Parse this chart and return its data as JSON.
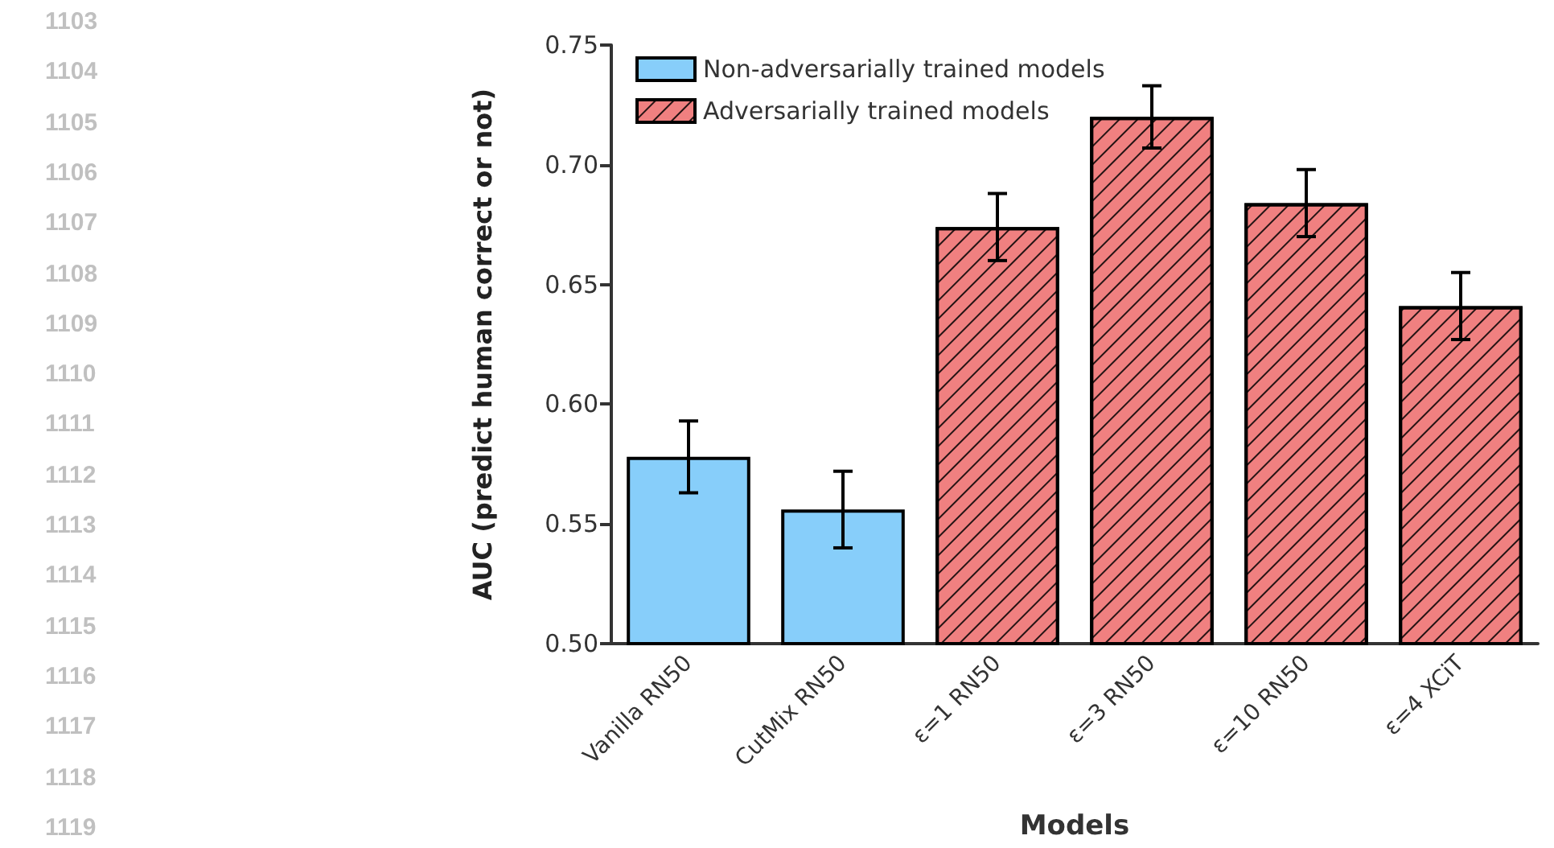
{
  "chart_data": {
    "type": "bar",
    "xlabel": "Models",
    "ylabel": "AUC (predict human correct or not)",
    "categories": [
      "Vanilla RN50",
      "CutMix RN50",
      "ε=1 RN50",
      "ε=3 RN50",
      "ε=10 RN50",
      "ε=4 XCiT"
    ],
    "series": [
      {
        "name": "Non-adversarially trained models",
        "color": "#87cefa",
        "values": [
          0.578,
          0.556,
          null,
          null,
          null,
          null
        ],
        "errors": [
          0.015,
          0.016,
          null,
          null,
          null,
          null
        ]
      },
      {
        "name": "Adversarially trained models",
        "color": "#f08080",
        "values": [
          null,
          null,
          0.674,
          0.72,
          0.684,
          0.641
        ],
        "errors": [
          null,
          null,
          0.014,
          0.013,
          0.014,
          0.014
        ]
      }
    ],
    "ylim": [
      0.5,
      0.75
    ],
    "yticks": [
      {
        "value": 0.5,
        "label": "0.50"
      },
      {
        "value": 0.55,
        "label": "0.55"
      },
      {
        "value": 0.6,
        "label": "0.60"
      },
      {
        "value": 0.65,
        "label": "0.65"
      },
      {
        "value": 0.7,
        "label": "0.70"
      },
      {
        "value": 0.75,
        "label": "0.75"
      }
    ],
    "grid": false,
    "legend": "top left",
    "annotations": [
      "1103",
      "1104",
      "1105",
      "1106",
      "1107",
      "1108",
      "1109",
      "1110",
      "1111",
      "1112",
      "1113",
      "1114",
      "1115",
      "1116",
      "1117",
      "1118",
      "1119"
    ]
  }
}
